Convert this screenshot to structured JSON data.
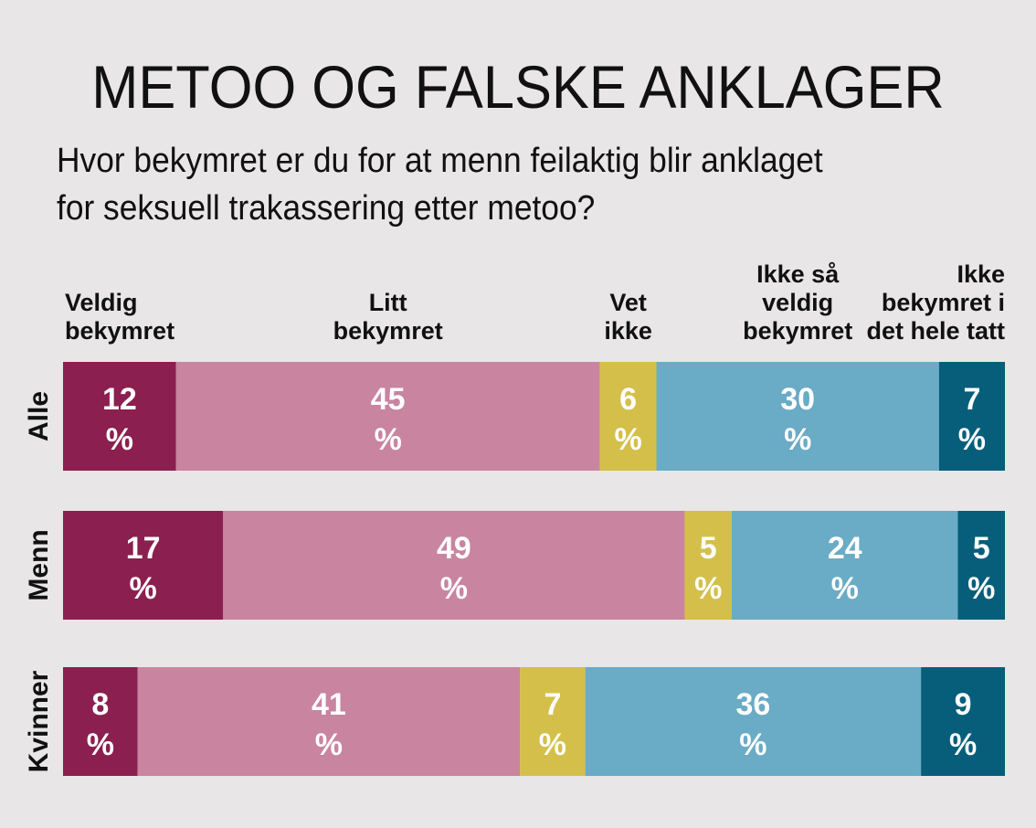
{
  "title": "METOO OG FALSKE ANKLAGER",
  "subtitle_lines": [
    "Hvor bekymret er du for at menn feilaktig blir anklaget",
    "for seksuell trakassering etter metoo?"
  ],
  "chart_data": {
    "type": "bar",
    "stacked": true,
    "orientation": "horizontal",
    "categories": [
      "Alle",
      "Menn",
      "Kvinner"
    ],
    "series": [
      {
        "name": "Veldig bekymret",
        "legend_lines": [
          "Veldig",
          "bekymret"
        ],
        "color": "#8b1f4f",
        "values": [
          12,
          17,
          8
        ]
      },
      {
        "name": "Litt bekymret",
        "legend_lines": [
          "Litt",
          "bekymret"
        ],
        "color": "#c9849f",
        "values": [
          45,
          49,
          41
        ]
      },
      {
        "name": "Vet ikke",
        "legend_lines": [
          "Vet",
          "ikke"
        ],
        "color": "#d4bf4a",
        "values": [
          6,
          5,
          7
        ]
      },
      {
        "name": "Ikke så veldig bekymret",
        "legend_lines": [
          "Ikke så",
          "veldig",
          "bekymret"
        ],
        "color": "#6aabc5",
        "values": [
          30,
          24,
          36
        ]
      },
      {
        "name": "Ikke bekymret i det hele tatt",
        "legend_lines": [
          "Ikke",
          "bekymret i",
          "det hele tatt"
        ],
        "color": "#065e7a",
        "values": [
          7,
          5,
          9
        ]
      }
    ],
    "unit": "%"
  }
}
